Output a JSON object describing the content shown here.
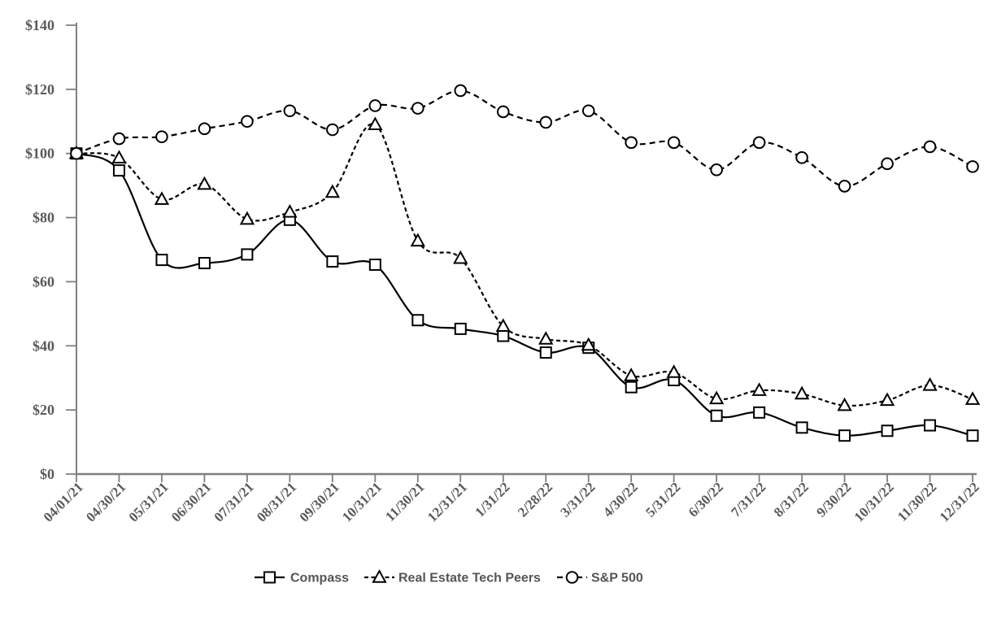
{
  "page": {
    "background": "#ffffff",
    "title": ""
  },
  "chart_data": {
    "type": "line",
    "title": "",
    "xlabel": "",
    "ylabel": "",
    "grid": false,
    "legend_position": "bottom",
    "ylim": [
      0,
      140
    ],
    "yticks": [
      {
        "value": 0,
        "label": "$0"
      },
      {
        "value": 20,
        "label": "$20"
      },
      {
        "value": 40,
        "label": "$40"
      },
      {
        "value": 60,
        "label": "$60"
      },
      {
        "value": 80,
        "label": "$80"
      },
      {
        "value": 100,
        "label": "$100"
      },
      {
        "value": 120,
        "label": "$120"
      },
      {
        "value": 140,
        "label": "$140"
      }
    ],
    "x": [
      "04/01/21",
      "04/30/21",
      "05/31/21",
      "06/30/21",
      "07/31/21",
      "08/31/21",
      "09/30/21",
      "10/31/21",
      "11/30/21",
      "12/31/21",
      "1/31/22",
      "2/28/22",
      "3/31/22",
      "4/30/22",
      "5/31/22",
      "6/30/22",
      "7/31/22",
      "8/31/22",
      "9/30/22",
      "10/31/22",
      "11/30/22",
      "12/31/22"
    ],
    "series": [
      {
        "name": "Compass",
        "marker": "square",
        "line_style": "solid",
        "color": "#000000",
        "values": [
          100,
          94.7,
          66.8,
          65.8,
          68.5,
          79.3,
          66.3,
          65.3,
          48.0,
          45.3,
          43.1,
          37.9,
          39.4,
          27.1,
          29.3,
          18.2,
          19.2,
          14.5,
          12.0,
          13.5,
          15.2,
          12.0
        ]
      },
      {
        "name": "Real Estate Tech Peers",
        "marker": "triangle",
        "line_style": "dashed-short",
        "color": "#000000",
        "values": [
          100,
          98.6,
          85.7,
          90.4,
          79.5,
          81.7,
          87.9,
          109.0,
          72.7,
          67.3,
          46.1,
          42.1,
          40.2,
          30.7,
          31.7,
          23.5,
          26.1,
          25.0,
          21.4,
          23.0,
          27.7,
          23.3
        ]
      },
      {
        "name": "S&P 500",
        "marker": "circle",
        "line_style": "dashed-long",
        "color": "#000000",
        "values": [
          100,
          104.6,
          105.2,
          107.7,
          110.0,
          113.3,
          107.4,
          114.9,
          114.1,
          119.6,
          113.0,
          109.7,
          113.3,
          103.4,
          103.4,
          94.9,
          103.4,
          98.7,
          89.8,
          96.8,
          102.1,
          95.9
        ]
      }
    ],
    "colors": {
      "axis": "#7f7f7f",
      "tick": "#7f7f7f",
      "label": "#595959",
      "legend_text": "#555555",
      "series_line": "#000000",
      "marker_fill": "#ffffff"
    }
  }
}
